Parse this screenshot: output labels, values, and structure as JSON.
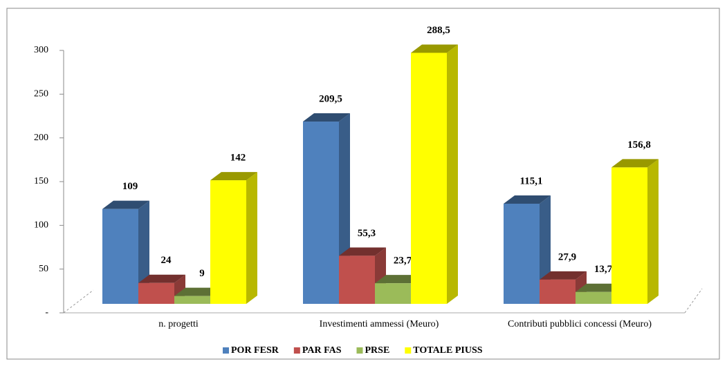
{
  "chart_data": {
    "type": "bar3d",
    "categories": [
      "n. progetti",
      "Investimenti ammessi (Meuro)",
      "Contributi pubblici concessi (Meuro)"
    ],
    "series": [
      {
        "name": "POR FESR",
        "color": "#4f81bd",
        "values": [
          109,
          209.5,
          115.1
        ],
        "value_labels": [
          "109",
          "209,5",
          "115,1"
        ]
      },
      {
        "name": "PAR FAS",
        "color": "#c0504d",
        "values": [
          24,
          55.3,
          27.9
        ],
        "value_labels": [
          "24",
          "55,3",
          "27,9"
        ]
      },
      {
        "name": "PRSE",
        "color": "#9bbb59",
        "values": [
          9,
          23.7,
          13.7
        ],
        "value_labels": [
          "9",
          "23,7",
          "13,7"
        ]
      },
      {
        "name": "TOTALE PIUSS",
        "color": "#ffff00",
        "values": [
          142,
          288.5,
          156.8
        ],
        "value_labels": [
          "142",
          "288,5",
          "156,8"
        ]
      }
    ],
    "ylim": [
      0,
      300
    ],
    "yticks": [
      {
        "value": 0,
        "label": "-"
      },
      50,
      100,
      150,
      200,
      250,
      300
    ],
    "legend": "bottom"
  }
}
